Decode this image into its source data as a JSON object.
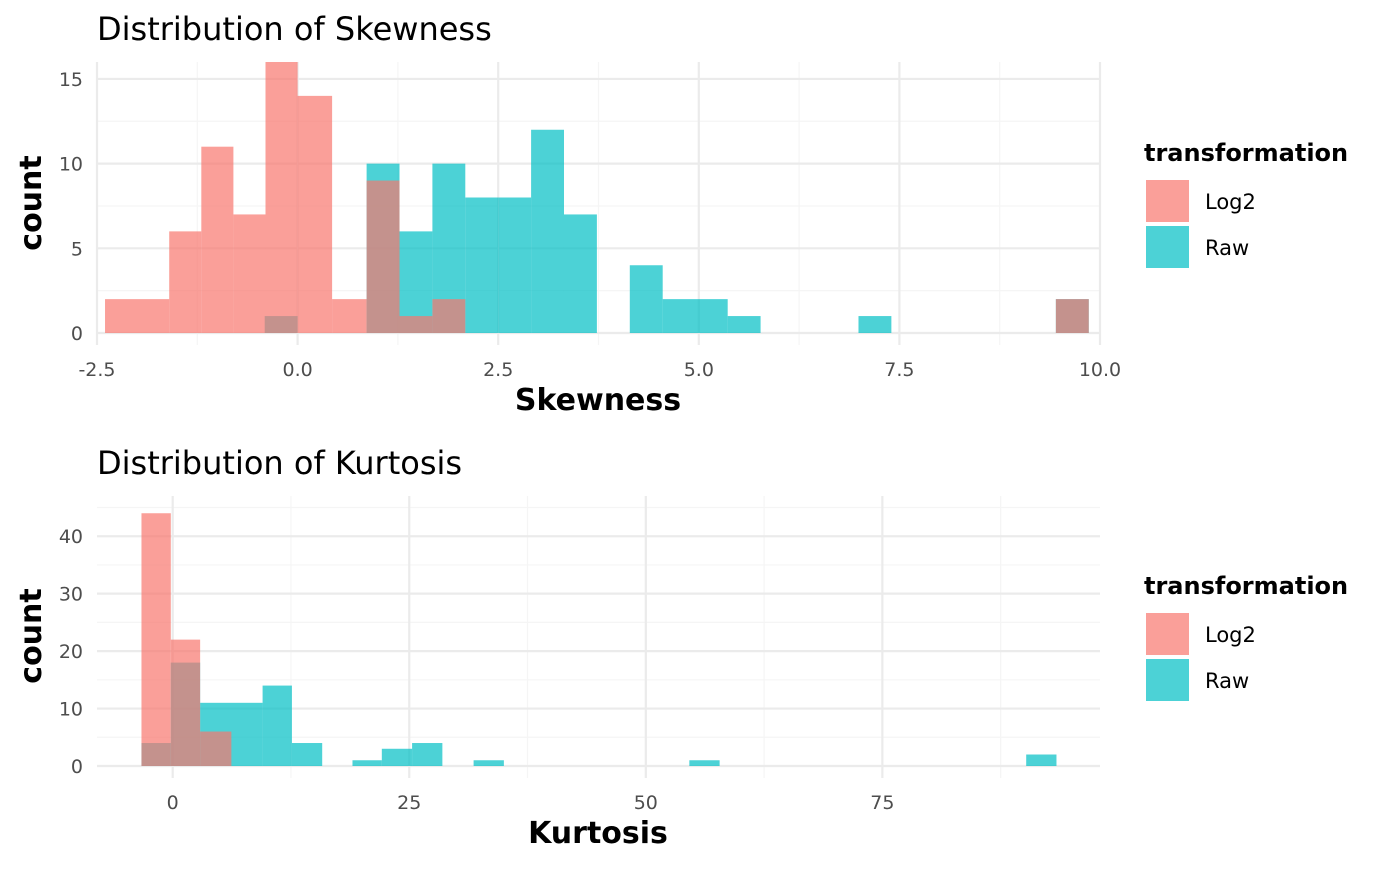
{
  "colors": {
    "log2": "#F8766D",
    "raw": "#00BFC4",
    "grid_major": "#EBEBEB",
    "grid_minor": "#F5F5F5"
  },
  "chart_data": [
    {
      "type": "histogram",
      "title": "Distribution of Skewness",
      "xlabel": "Skewness",
      "ylabel": "count",
      "xlim": [
        -2.5,
        10.0
      ],
      "ylim": [
        0,
        16
      ],
      "x_ticks": [
        {
          "value": -2.5,
          "label": "-2.5"
        },
        {
          "value": 0,
          "label": "0.0"
        },
        {
          "value": 2.5,
          "label": "2.5"
        },
        {
          "value": 5,
          "label": "5.0"
        },
        {
          "value": 7.5,
          "label": "7.5"
        },
        {
          "value": 10,
          "label": "10.0"
        }
      ],
      "y_ticks": [
        {
          "value": 0,
          "label": "0"
        },
        {
          "value": 5,
          "label": "5"
        },
        {
          "value": 10,
          "label": "10"
        },
        {
          "value": 15,
          "label": "15"
        }
      ],
      "grid": true,
      "legend": {
        "title": "transformation",
        "position": "right",
        "entries": [
          "Log2",
          "Raw"
        ]
      },
      "series": [
        {
          "name": "Log2",
          "bins": [
            {
              "x0": -2.4,
              "x1": -1.6,
              "count": 2
            },
            {
              "x0": -1.6,
              "x1": -1.2,
              "count": 6
            },
            {
              "x0": -1.2,
              "x1": -0.8,
              "count": 11
            },
            {
              "x0": -0.8,
              "x1": -0.4,
              "count": 7
            },
            {
              "x0": -0.4,
              "x1": 0.0,
              "count": 16
            },
            {
              "x0": 0.0,
              "x1": 0.43,
              "count": 14
            },
            {
              "x0": 0.43,
              "x1": 0.86,
              "count": 2
            },
            {
              "x0": 0.86,
              "x1": 1.27,
              "count": 9
            },
            {
              "x0": 1.27,
              "x1": 1.68,
              "count": 1
            },
            {
              "x0": 1.68,
              "x1": 2.09,
              "count": 2
            },
            {
              "x0": 9.45,
              "x1": 9.86,
              "count": 2
            }
          ]
        },
        {
          "name": "Raw",
          "bins": [
            {
              "x0": -0.41,
              "x1": 0.0,
              "count": 1
            },
            {
              "x0": 0.86,
              "x1": 1.27,
              "count": 10
            },
            {
              "x0": 1.27,
              "x1": 1.68,
              "count": 6
            },
            {
              "x0": 1.68,
              "x1": 2.09,
              "count": 10
            },
            {
              "x0": 2.09,
              "x1": 2.5,
              "count": 8
            },
            {
              "x0": 2.5,
              "x1": 2.91,
              "count": 8
            },
            {
              "x0": 2.91,
              "x1": 3.32,
              "count": 12
            },
            {
              "x0": 3.32,
              "x1": 3.73,
              "count": 7
            },
            {
              "x0": 4.14,
              "x1": 4.55,
              "count": 4
            },
            {
              "x0": 4.55,
              "x1": 5.36,
              "count": 2
            },
            {
              "x0": 5.36,
              "x1": 5.77,
              "count": 1
            },
            {
              "x0": 6.99,
              "x1": 7.4,
              "count": 1
            },
            {
              "x0": 9.45,
              "x1": 9.86,
              "count": 2
            }
          ]
        }
      ]
    },
    {
      "type": "histogram",
      "title": "Distribution of Kurtosis",
      "xlabel": "Kurtosis",
      "ylabel": "count",
      "xlim": [
        -8,
        98
      ],
      "ylim": [
        0,
        47
      ],
      "x_ticks": [
        {
          "value": 0,
          "label": "0"
        },
        {
          "value": 25,
          "label": "25"
        },
        {
          "value": 50,
          "label": "50"
        },
        {
          "value": 75,
          "label": "75"
        }
      ],
      "y_ticks": [
        {
          "value": 0,
          "label": "0"
        },
        {
          "value": 10,
          "label": "10"
        },
        {
          "value": 20,
          "label": "20"
        },
        {
          "value": 30,
          "label": "30"
        },
        {
          "value": 40,
          "label": "40"
        }
      ],
      "grid": true,
      "legend": {
        "title": "transformation",
        "position": "right",
        "entries": [
          "Log2",
          "Raw"
        ]
      },
      "series": [
        {
          "name": "Log2",
          "bins": [
            {
              "x0": -3.3,
              "x1": -0.2,
              "count": 44
            },
            {
              "x0": -0.2,
              "x1": 2.9,
              "count": 22
            },
            {
              "x0": 2.9,
              "x1": 6.2,
              "count": 6
            }
          ]
        },
        {
          "name": "Raw",
          "bins": [
            {
              "x0": -3.3,
              "x1": -0.2,
              "count": 4
            },
            {
              "x0": -0.2,
              "x1": 2.9,
              "count": 18
            },
            {
              "x0": 2.9,
              "x1": 9.5,
              "count": 11
            },
            {
              "x0": 9.5,
              "x1": 12.6,
              "count": 14
            },
            {
              "x0": 12.6,
              "x1": 15.8,
              "count": 4
            },
            {
              "x0": 19.0,
              "x1": 22.1,
              "count": 1
            },
            {
              "x0": 22.1,
              "x1": 25.3,
              "count": 3
            },
            {
              "x0": 25.3,
              "x1": 28.5,
              "count": 4
            },
            {
              "x0": 31.8,
              "x1": 35.0,
              "count": 1
            },
            {
              "x0": 54.6,
              "x1": 57.8,
              "count": 1
            },
            {
              "x0": 90.2,
              "x1": 93.4,
              "count": 2
            }
          ]
        }
      ]
    }
  ]
}
